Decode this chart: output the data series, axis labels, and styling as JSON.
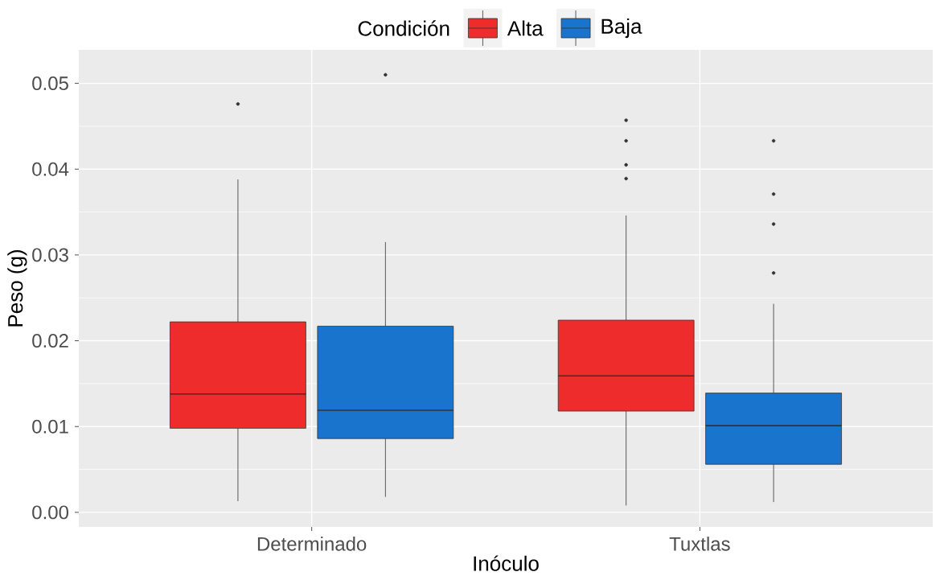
{
  "chart_data": {
    "type": "box",
    "xlabel": "Inóculo",
    "ylabel": "Peso (g)",
    "legend_title": "Condición",
    "legend": "top",
    "grid": true,
    "categories": [
      "Determinado",
      "Tuxtlas"
    ],
    "ylim": [
      -0.0017,
      0.0539
    ],
    "yticks": [
      {
        "value": 0,
        "label": "0.00"
      },
      0.01,
      0.02,
      0.03,
      0.04,
      0.05
    ],
    "series": [
      {
        "name": "Alta",
        "color": "#ee2c2c",
        "boxes": [
          {
            "low": 0.0013,
            "q1": 0.0098,
            "median": 0.0138,
            "q3": 0.0222,
            "high": 0.0388,
            "outliers": [
              0.0476
            ]
          },
          {
            "low": 0.0008,
            "q1": 0.0118,
            "median": 0.0159,
            "q3": 0.0224,
            "high": 0.0346,
            "outliers": [
              0.0457,
              0.0433,
              0.0405,
              0.0389
            ]
          }
        ]
      },
      {
        "name": "Baja",
        "color": "#1874cd",
        "boxes": [
          {
            "low": 0.0018,
            "q1": 0.0086,
            "median": 0.0119,
            "q3": 0.0217,
            "high": 0.0315,
            "outliers": [
              0.051
            ]
          },
          {
            "low": 0.0012,
            "q1": 0.0056,
            "median": 0.0101,
            "q3": 0.0139,
            "high": 0.0243,
            "outliers": [
              0.0433,
              0.0371,
              0.0336,
              0.0279
            ]
          }
        ]
      }
    ]
  }
}
